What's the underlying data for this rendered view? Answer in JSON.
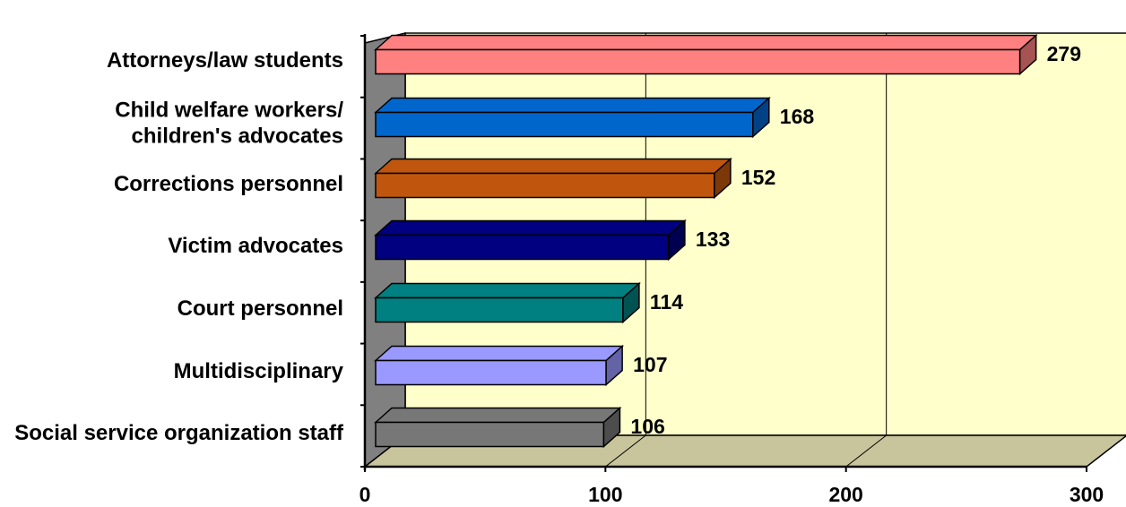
{
  "chart_data": {
    "type": "bar",
    "orientation": "horizontal",
    "three_d": true,
    "categories": [
      [
        "Attorneys/law students"
      ],
      [
        "Child welfare workers/",
        "children's advocates"
      ],
      [
        "Corrections personnel"
      ],
      [
        "Victim advocates"
      ],
      [
        "Court personnel"
      ],
      [
        "Multidisciplinary"
      ],
      [
        "Social service organization staff"
      ]
    ],
    "values": [
      279,
      168,
      152,
      133,
      114,
      107,
      106
    ],
    "value_labels": [
      "279",
      "168",
      "152",
      "133",
      "114",
      "107",
      "106"
    ],
    "colors": [
      "#FF8080",
      "#0066CC",
      "#C0560E",
      "#000080",
      "#008080",
      "#9999FF",
      "#777777"
    ],
    "xlim": [
      0,
      300
    ],
    "x_ticks": [
      "0",
      "100",
      "200",
      "300"
    ],
    "x_tick_values": [
      0,
      100,
      200,
      300
    ],
    "grid": true,
    "legend": false,
    "plot_background": "#FFFFCC",
    "wall_color": "#808080",
    "floor_color": "#C8C49C"
  }
}
